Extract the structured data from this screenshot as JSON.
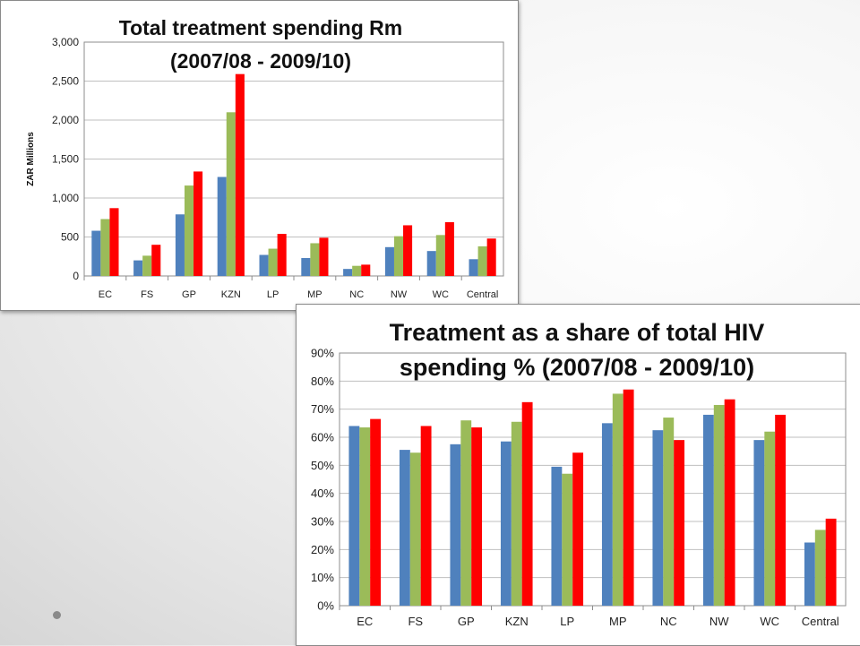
{
  "colors": {
    "series1": "#4f81bd",
    "series2": "#9bbb59",
    "series3": "#ff0000",
    "grid": "#bfbfbf"
  },
  "chart_data": [
    {
      "type": "bar",
      "title_lines": [
        "Total treatment spending Rm",
        "(2007/08 - 2009/10)"
      ],
      "ylabel": "ZAR Millions",
      "xlabel": "",
      "ylim": [
        0,
        3000
      ],
      "yticks": [
        "0",
        "500",
        "1,000",
        "1,500",
        "2,000",
        "2,500",
        "3,000"
      ],
      "grid": true,
      "legend": "none",
      "categories": [
        "EC",
        "FS",
        "GP",
        "KZN",
        "LP",
        "MP",
        "NC",
        "NW",
        "WC",
        "Central"
      ],
      "series": [
        {
          "values": [
            580,
            200,
            790,
            1270,
            270,
            230,
            90,
            370,
            320,
            215
          ]
        },
        {
          "values": [
            730,
            260,
            1160,
            2100,
            350,
            420,
            130,
            510,
            525,
            380
          ]
        },
        {
          "values": [
            870,
            400,
            1340,
            2590,
            540,
            490,
            145,
            650,
            690,
            480
          ]
        }
      ]
    },
    {
      "type": "bar",
      "title_lines": [
        "Treatment as a share of total HIV",
        "spending % (2007/08 - 2009/10)"
      ],
      "ylabel": "",
      "xlabel": "",
      "ylim": [
        0,
        90
      ],
      "yticks": [
        "0%",
        "10%",
        "20%",
        "30%",
        "40%",
        "50%",
        "60%",
        "70%",
        "80%",
        "90%"
      ],
      "grid": true,
      "legend": "none",
      "categories": [
        "EC",
        "FS",
        "GP",
        "KZN",
        "LP",
        "MP",
        "NC",
        "NW",
        "WC",
        "Central"
      ],
      "series": [
        {
          "values": [
            64,
            55.5,
            57.5,
            58.5,
            49.5,
            65,
            62.5,
            68,
            59,
            22.5
          ]
        },
        {
          "values": [
            63.5,
            54.5,
            66,
            65.5,
            47,
            75.5,
            67,
            71.5,
            62,
            27
          ]
        },
        {
          "values": [
            66.5,
            64,
            63.5,
            72.5,
            54.5,
            77,
            59,
            73.5,
            68,
            31
          ]
        }
      ]
    }
  ]
}
